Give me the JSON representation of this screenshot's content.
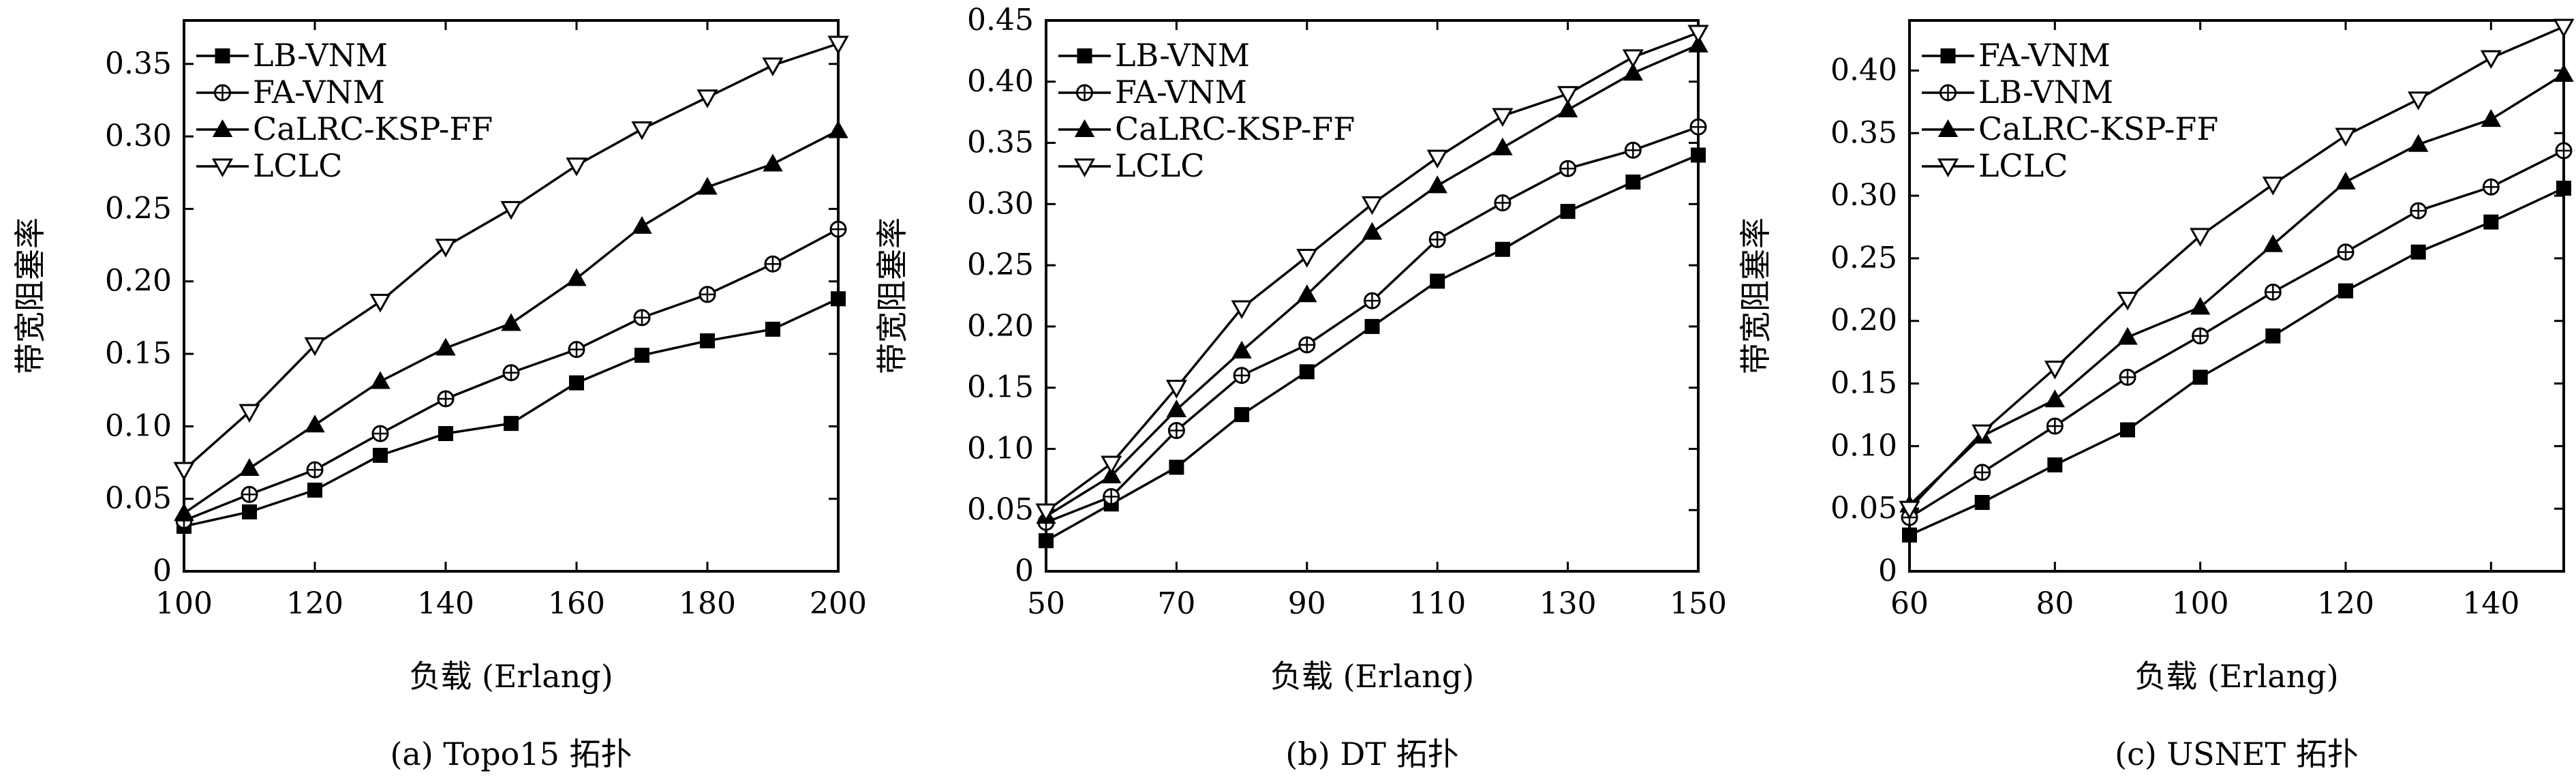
{
  "chart_data": [
    {
      "type": "line",
      "caption": "(a) Topo15 拓扑",
      "xlabel": "负载 (Erlang)",
      "ylabel": "带宽阻塞率",
      "xlim": [
        100,
        200
      ],
      "ylim": [
        0,
        0.38
      ],
      "xticks": [
        100,
        120,
        140,
        160,
        180,
        200
      ],
      "yticks": [
        0,
        0.05,
        0.1,
        0.15,
        0.2,
        0.25,
        0.3,
        0.35
      ],
      "ytick_labels": [
        "0",
        "0.05",
        "0.10",
        "0.15",
        "0.20",
        "0.25",
        "0.30",
        "0.35"
      ],
      "legend_position": "top-left",
      "x": [
        100,
        110,
        120,
        130,
        140,
        150,
        160,
        170,
        180,
        190,
        200
      ],
      "series": [
        {
          "name": "LB-VNM",
          "marker": "square",
          "values": [
            0.031,
            0.041,
            0.056,
            0.08,
            0.095,
            0.102,
            0.13,
            0.149,
            0.159,
            0.167,
            0.188
          ]
        },
        {
          "name": "FA-VNM",
          "marker": "oplus",
          "values": [
            0.035,
            0.053,
            0.07,
            0.095,
            0.119,
            0.137,
            0.153,
            0.175,
            0.191,
            0.212,
            0.236
          ]
        },
        {
          "name": "CaLRC-KSP-FF",
          "marker": "triangle-up",
          "values": [
            0.04,
            0.071,
            0.101,
            0.131,
            0.154,
            0.171,
            0.202,
            0.238,
            0.265,
            0.281,
            0.304
          ]
        },
        {
          "name": "LCLC",
          "marker": "triangle-down",
          "values": [
            0.07,
            0.11,
            0.156,
            0.186,
            0.224,
            0.25,
            0.28,
            0.305,
            0.327,
            0.349,
            0.364
          ]
        }
      ]
    },
    {
      "type": "line",
      "caption": "(b) DT 拓扑",
      "xlabel": "负载 (Erlang)",
      "ylabel": "带宽阻塞率",
      "xlim": [
        50,
        150
      ],
      "ylim": [
        0,
        0.45
      ],
      "xticks": [
        50,
        70,
        90,
        110,
        130,
        150
      ],
      "yticks": [
        0,
        0.05,
        0.1,
        0.15,
        0.2,
        0.25,
        0.3,
        0.35,
        0.4,
        0.45
      ],
      "ytick_labels": [
        "0",
        "0.05",
        "0.10",
        "0.15",
        "0.20",
        "0.25",
        "0.30",
        "0.35",
        "0.40",
        "0.45"
      ],
      "legend_position": "top-left",
      "x": [
        50,
        60,
        70,
        80,
        90,
        100,
        110,
        120,
        130,
        140,
        150
      ],
      "series": [
        {
          "name": "LB-VNM",
          "marker": "square",
          "values": [
            0.025,
            0.055,
            0.085,
            0.128,
            0.163,
            0.2,
            0.237,
            0.263,
            0.294,
            0.318,
            0.34
          ]
        },
        {
          "name": "FA-VNM",
          "marker": "oplus",
          "values": [
            0.04,
            0.061,
            0.115,
            0.16,
            0.185,
            0.221,
            0.271,
            0.301,
            0.329,
            0.344,
            0.363
          ]
        },
        {
          "name": "CaLRC-KSP-FF",
          "marker": "triangle-up",
          "values": [
            0.045,
            0.078,
            0.132,
            0.18,
            0.226,
            0.277,
            0.315,
            0.346,
            0.377,
            0.407,
            0.43
          ]
        },
        {
          "name": "LCLC",
          "marker": "triangle-down",
          "values": [
            0.049,
            0.088,
            0.15,
            0.215,
            0.257,
            0.3,
            0.338,
            0.372,
            0.39,
            0.42,
            0.44
          ]
        }
      ]
    },
    {
      "type": "line",
      "caption": "(c) USNET 拓扑",
      "xlabel": "负载 (Erlang)",
      "ylabel": "带宽阻塞率",
      "xlim": [
        60,
        150
      ],
      "ylim": [
        0,
        0.44
      ],
      "xticks": [
        60,
        80,
        100,
        120,
        140
      ],
      "yticks": [
        0,
        0.05,
        0.1,
        0.15,
        0.2,
        0.25,
        0.3,
        0.35,
        0.4
      ],
      "ytick_labels": [
        "0",
        "0.05",
        "0.10",
        "0.15",
        "0.20",
        "0.25",
        "0.30",
        "0.35",
        "0.40"
      ],
      "legend_position": "top-left",
      "x": [
        60,
        70,
        80,
        90,
        100,
        110,
        120,
        130,
        140,
        150
      ],
      "series": [
        {
          "name": "FA-VNM",
          "marker": "square",
          "values": [
            0.029,
            0.055,
            0.085,
            0.113,
            0.155,
            0.188,
            0.224,
            0.255,
            0.279,
            0.306
          ]
        },
        {
          "name": "LB-VNM",
          "marker": "oplus",
          "values": [
            0.043,
            0.079,
            0.116,
            0.155,
            0.188,
            0.223,
            0.255,
            0.288,
            0.307,
            0.336
          ]
        },
        {
          "name": "CaLRC-KSP-FF",
          "marker": "triangle-up",
          "values": [
            0.053,
            0.108,
            0.137,
            0.187,
            0.211,
            0.261,
            0.311,
            0.341,
            0.361,
            0.397
          ]
        },
        {
          "name": "LCLC",
          "marker": "triangle-down",
          "values": [
            0.05,
            0.111,
            0.162,
            0.217,
            0.268,
            0.309,
            0.348,
            0.377,
            0.41,
            0.435
          ]
        }
      ]
    }
  ]
}
